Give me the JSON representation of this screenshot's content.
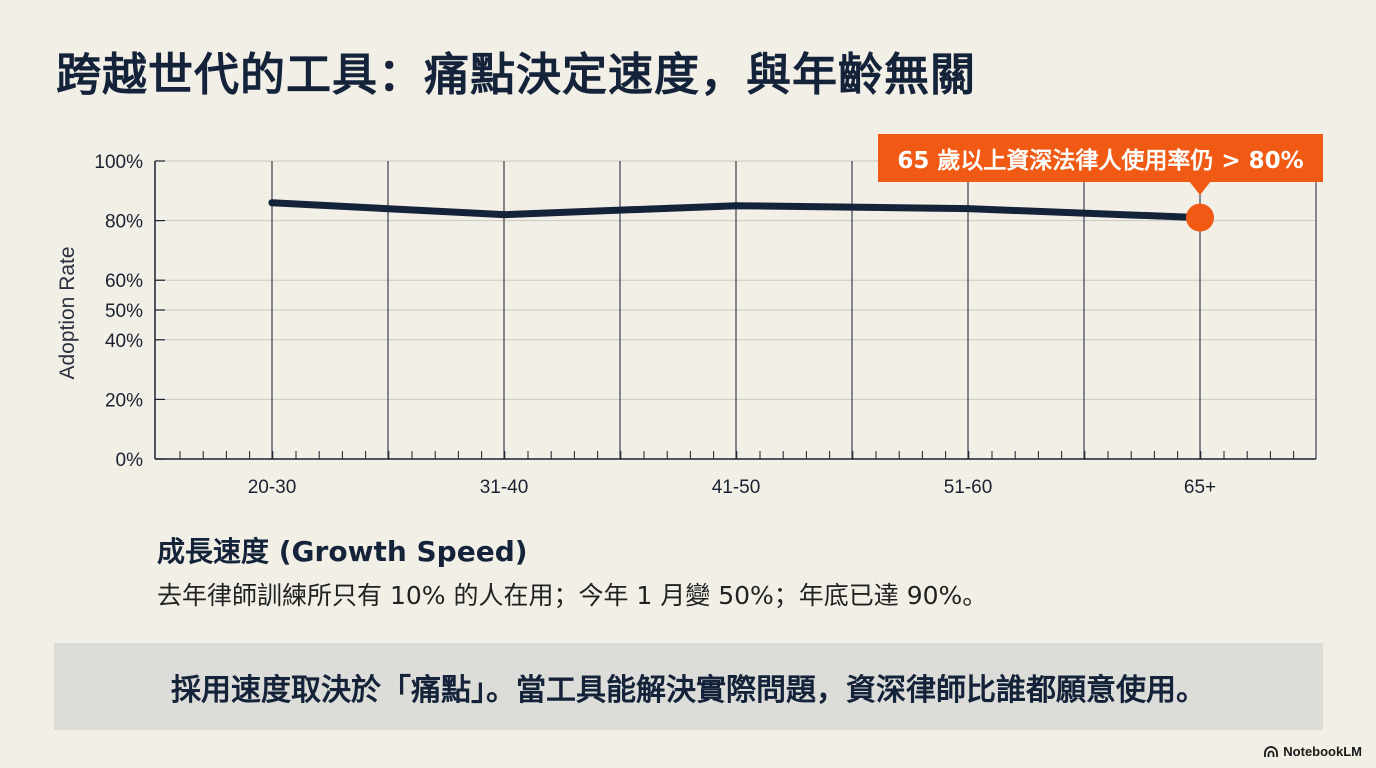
{
  "title": "跨越世代的工具：痛點決定速度，與年齡無關",
  "callout": "65 歲以上資深法律人使用率仍 > 80%",
  "growth": {
    "heading": "成長速度 (Growth Speed)",
    "text": "去年律師訓練所只有 10% 的人在用；今年 1 月變 50%；年底已達 90%。"
  },
  "banner": "採用速度取決於「痛點」。當工具能解決實際問題，資深律師比誰都願意使用。",
  "brand": "NotebookLM",
  "colors": {
    "line": "#15233a",
    "highlight": "#f05a14",
    "grid": "#c9c9c3",
    "axis": "#1a2130"
  },
  "chart_data": {
    "type": "line",
    "categories": [
      "20-30",
      "31-40",
      "41-50",
      "51-60",
      "65+"
    ],
    "values": [
      86,
      82,
      85,
      84,
      81
    ],
    "ylabel": "Adoption Rate",
    "ylim": [
      0,
      100
    ],
    "yticks": [
      {
        "value": 100,
        "label": "100%"
      },
      {
        "value": 80,
        "label": "80%"
      },
      {
        "value": 60,
        "label": "60%"
      },
      {
        "value": 50,
        "label": "50%"
      },
      {
        "value": 40,
        "label": "40%"
      },
      {
        "value": 20,
        "label": "20%"
      },
      {
        "value": 0,
        "label": "0%"
      }
    ],
    "highlight_index": 4,
    "grid": true
  }
}
